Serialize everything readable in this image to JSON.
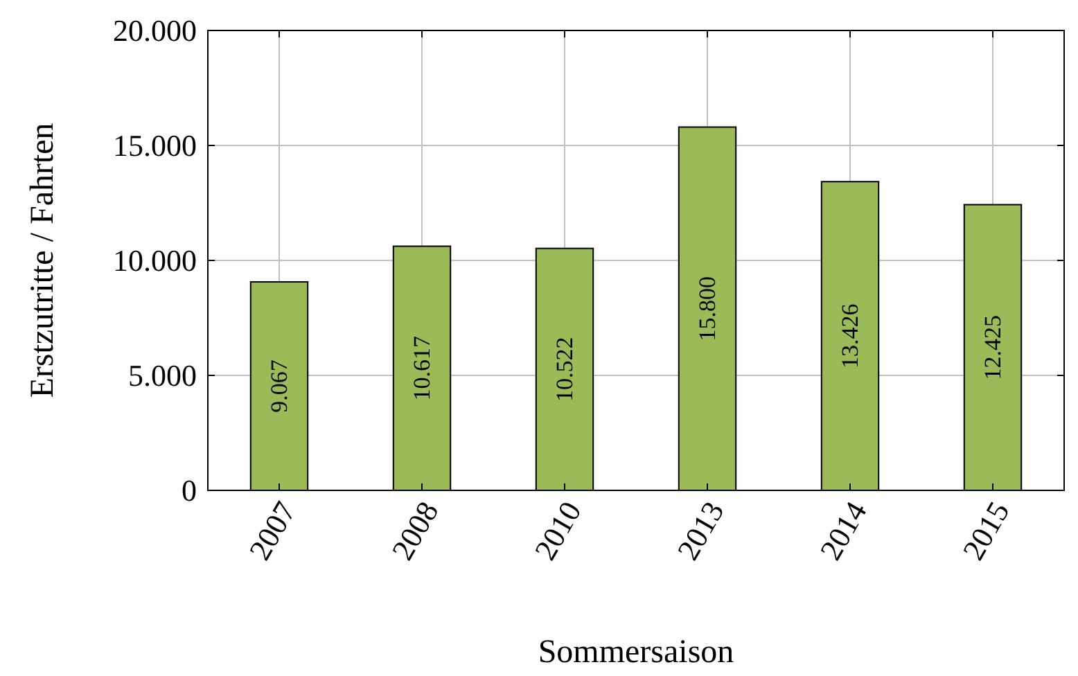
{
  "chart_data": {
    "type": "bar",
    "xlabel": "Sommersaison",
    "ylabel": "Erstzutritte / Fahrten",
    "categories": [
      "2007",
      "2008",
      "2010",
      "2013",
      "2014",
      "2015"
    ],
    "values": [
      9067,
      10617,
      10522,
      15800,
      13426,
      12425
    ],
    "value_labels": [
      "9.067",
      "10.617",
      "10.522",
      "15.800",
      "13.426",
      "12.425"
    ],
    "color": "#9bbb59",
    "ylim": [
      0,
      20000
    ],
    "yticks": [
      {
        "value": 0,
        "label": "0"
      },
      {
        "value": 5000,
        "label": "5.000"
      },
      {
        "value": 10000,
        "label": "10.000"
      },
      {
        "value": 15000,
        "label": "15.000"
      },
      {
        "value": 20000,
        "label": "20.000"
      }
    ],
    "grid": true
  }
}
